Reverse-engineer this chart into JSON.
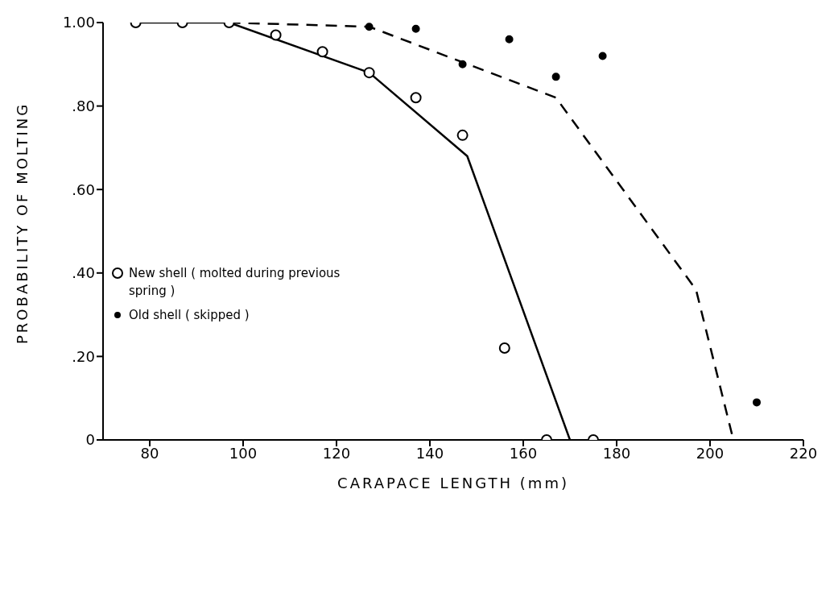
{
  "chart_data": {
    "type": "scatter",
    "xlabel": "CARAPACE LENGTH    (mm)",
    "ylabel": "PROBABILITY OF MOLTING",
    "xlim": [
      70,
      220
    ],
    "xticks": [
      80,
      100,
      120,
      140,
      160,
      180,
      200,
      220
    ],
    "ylim": [
      0,
      1
    ],
    "yticks": [
      {
        "value": 0,
        "label": "0"
      },
      {
        "value": 0.2,
        "label": ".20"
      },
      {
        "value": 0.4,
        "label": ".40"
      },
      {
        "value": 0.6,
        "label": ".60"
      },
      {
        "value": 0.8,
        "label": ".80"
      },
      {
        "value": 1,
        "label": "1.00"
      }
    ],
    "grid": false,
    "legend": "left",
    "marker": "circle",
    "series": [
      {
        "name": "New shell ( molted during previous spring )",
        "color": "#000000",
        "x": [
          77,
          87,
          97,
          107,
          117,
          127,
          137,
          147,
          156,
          165,
          175
        ],
        "values": [
          1.0,
          1.0,
          1.0,
          0.97,
          0.93,
          0.88,
          0.82,
          0.73,
          0.22,
          0,
          0
        ]
      },
      {
        "name": "Old shell ( skipped )",
        "color": "#000000",
        "x": [
          127,
          137,
          147,
          157,
          167,
          177,
          210
        ],
        "values": [
          0.99,
          0.985,
          0.9,
          0.96,
          0.87,
          0.92,
          0.09
        ]
      },
      {
        "type": "line",
        "color": "#000000",
        "line_style": "solid",
        "marker": "none",
        "x": [
          77,
          97,
          127,
          148,
          170
        ],
        "values": [
          1.0,
          1.0,
          0.88,
          0.68,
          0
        ]
      },
      {
        "type": "line",
        "color": "#000000",
        "line_style": "dashed",
        "marker": "none",
        "x": [
          97,
          127,
          167,
          197,
          205
        ],
        "values": [
          1.0,
          0.99,
          0.82,
          0.36,
          0
        ]
      }
    ]
  }
}
